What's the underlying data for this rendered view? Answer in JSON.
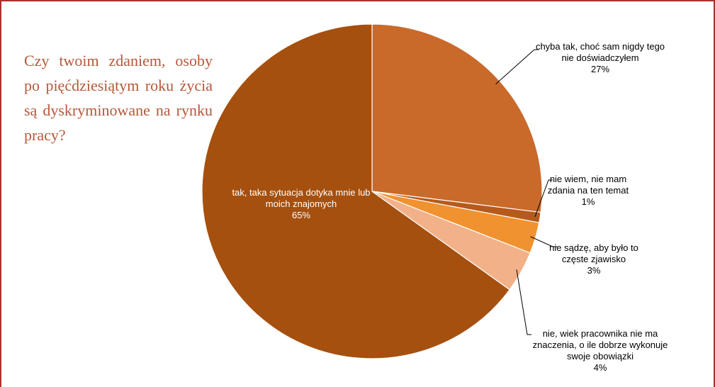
{
  "chart_data": {
    "type": "pie",
    "title": "Czy twoim zdaniem, osoby po pięćdziesiątym roku życia są dyskryminowane na rynku pracy?",
    "categories": [
      "chyba tak, choć sam nigdy tego nie doświadczyłem",
      "nie wiem, nie mam zdania na ten temat",
      "nie sądzę, aby było to częste zjawisko",
      "nie, wiek pracownika nie ma znaczenia, o ile dobrze wykonuje swoje obowiązki",
      "tak, taka sytuacja dotyka mnie lub moich znajomych"
    ],
    "values": [
      27,
      1,
      3,
      4,
      65
    ],
    "value_labels": [
      "27%",
      "1%",
      "3%",
      "4%",
      "65%"
    ],
    "colors": [
      "#c96a2b",
      "#b65a1c",
      "#f0922f",
      "#f2b188",
      "#a5500f"
    ]
  }
}
